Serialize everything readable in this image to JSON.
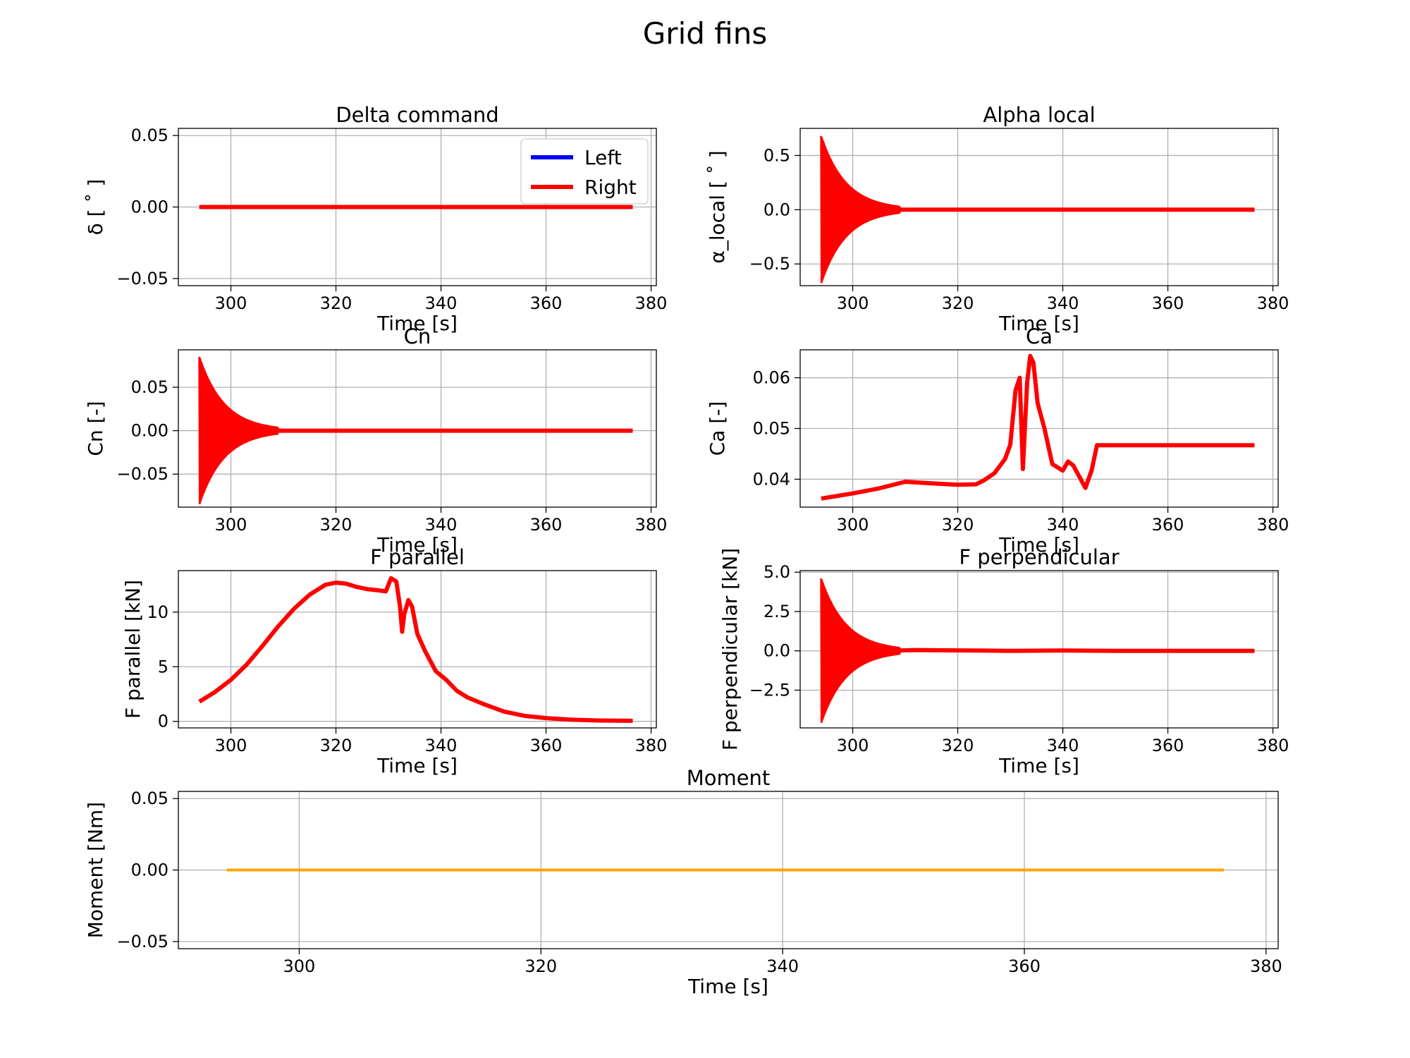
{
  "figure": {
    "title": "Grid fins"
  },
  "colors": {
    "left": "#0000ff",
    "right": "#ff0000",
    "moment": "#ffa500",
    "grid": "#b0b0b0"
  },
  "legend": {
    "entries": [
      "Left",
      "Right"
    ],
    "placement": "upper-right of first panel"
  },
  "chart_data": [
    {
      "type": "line",
      "title": "Delta command",
      "xlabel": "Time [s]",
      "ylabel": "δ [ ˚ ]",
      "xlim": [
        290,
        381
      ],
      "ylim": [
        -0.055,
        0.055
      ],
      "xticks": [
        300,
        320,
        340,
        360,
        380
      ],
      "yticks": [
        -0.05,
        0.0,
        0.05
      ],
      "ytick_labels": [
        "−0.05",
        "0.00",
        "0.05"
      ],
      "grid": true,
      "series": [
        {
          "name": "Left",
          "color": "#0000ff",
          "x": [
            294,
            376.5
          ],
          "y": [
            0,
            0
          ]
        },
        {
          "name": "Right",
          "color": "#ff0000",
          "x": [
            294,
            376.5
          ],
          "y": [
            0,
            0
          ]
        }
      ]
    },
    {
      "type": "line",
      "title": "Alpha local",
      "xlabel": "Time [s]",
      "ylabel": "α_local [ ˚ ]",
      "xlim": [
        290,
        381
      ],
      "ylim": [
        -0.7,
        0.75
      ],
      "xticks": [
        300,
        320,
        340,
        360,
        380
      ],
      "yticks": [
        -0.5,
        0.0,
        0.5
      ],
      "ytick_labels": [
        "−0.5",
        "0.0",
        "0.5"
      ],
      "grid": true,
      "series": [
        {
          "name": "Right",
          "color": "#ff0000",
          "oscillation": {
            "x_start": 294,
            "x_decay_end": 309,
            "x_end": 376.5,
            "amplitude_start": 0.68,
            "mean": 0.0
          },
          "x": [
            294,
            376.5
          ],
          "y": [
            0,
            0
          ]
        }
      ]
    },
    {
      "type": "line",
      "title": "Cn",
      "xlabel": "Time [s]",
      "ylabel": "Cn [-]",
      "xlim": [
        290,
        381
      ],
      "ylim": [
        -0.088,
        0.093
      ],
      "xticks": [
        300,
        320,
        340,
        360,
        380
      ],
      "yticks": [
        -0.05,
        0.0,
        0.05
      ],
      "ytick_labels": [
        "−0.05",
        "0.00",
        "0.05"
      ],
      "grid": true,
      "series": [
        {
          "name": "Right",
          "color": "#ff0000",
          "oscillation": {
            "x_start": 294,
            "x_decay_end": 309,
            "x_end": 376.5,
            "amplitude_start": 0.085,
            "mean": 0.0
          },
          "x": [
            294,
            376.5
          ],
          "y": [
            0,
            0
          ]
        }
      ]
    },
    {
      "type": "line",
      "title": "Ca",
      "xlabel": "Time [s]",
      "ylabel": "Ca [-]",
      "xlim": [
        290,
        381
      ],
      "ylim": [
        0.0345,
        0.0655
      ],
      "xticks": [
        300,
        320,
        340,
        360,
        380
      ],
      "yticks": [
        0.04,
        0.05,
        0.06
      ],
      "ytick_labels": [
        "0.04",
        "0.05",
        "0.06"
      ],
      "grid": true,
      "series": [
        {
          "name": "Right",
          "color": "#ff0000",
          "x": [
            294,
            300,
            305,
            310,
            315,
            320,
            323.5,
            325,
            327,
            329,
            330,
            331,
            331.8,
            332.4,
            333.2,
            333.8,
            334.4,
            335.2,
            336.5,
            338,
            340,
            341,
            342,
            344.3,
            345.5,
            346.5,
            350,
            376.5
          ],
          "y": [
            0.0362,
            0.0372,
            0.0382,
            0.0395,
            0.0392,
            0.0389,
            0.039,
            0.0398,
            0.0412,
            0.044,
            0.0468,
            0.0575,
            0.06,
            0.042,
            0.059,
            0.0643,
            0.063,
            0.055,
            0.05,
            0.043,
            0.0417,
            0.0435,
            0.0427,
            0.0383,
            0.0418,
            0.0467,
            0.0467,
            0.0467
          ]
        }
      ]
    },
    {
      "type": "line",
      "title": "F parallel",
      "xlabel": "Time [s]",
      "ylabel": "F parallel [kN]",
      "xlim": [
        290,
        381
      ],
      "ylim": [
        -0.6,
        13.8
      ],
      "xticks": [
        300,
        320,
        340,
        360,
        380
      ],
      "yticks": [
        0,
        5,
        10
      ],
      "ytick_labels": [
        "0",
        "5",
        "10"
      ],
      "grid": true,
      "series": [
        {
          "name": "Right",
          "color": "#ff0000",
          "x": [
            294,
            297,
            300,
            303,
            306,
            309,
            312,
            315,
            318,
            320,
            322,
            324,
            326,
            328,
            329.5,
            330.5,
            331.5,
            332.2,
            332.6,
            333,
            333.8,
            334.5,
            335.5,
            337,
            339,
            341,
            343,
            345,
            348,
            352,
            356,
            360,
            365,
            370,
            376.5
          ],
          "y": [
            1.8,
            2.7,
            3.8,
            5.2,
            6.9,
            8.7,
            10.3,
            11.6,
            12.5,
            12.7,
            12.6,
            12.3,
            12.1,
            12.0,
            11.9,
            13.1,
            12.8,
            10.5,
            8.2,
            9.8,
            11.1,
            10.5,
            8.0,
            6.4,
            4.6,
            3.8,
            2.8,
            2.2,
            1.6,
            0.9,
            0.5,
            0.3,
            0.15,
            0.08,
            0.05
          ]
        }
      ]
    },
    {
      "type": "line",
      "title": "F perpendicular",
      "xlabel": "Time [s]",
      "ylabel": "F perpendicular [kN]",
      "xlim": [
        290,
        381
      ],
      "ylim": [
        -4.9,
        5.1
      ],
      "xticks": [
        300,
        320,
        340,
        360,
        380
      ],
      "yticks": [
        -2.5,
        0.0,
        2.5,
        5.0
      ],
      "ytick_labels": [
        "−2.5",
        "0.0",
        "2.5",
        "5.0"
      ],
      "grid": true,
      "series": [
        {
          "name": "Right",
          "color": "#ff0000",
          "oscillation": {
            "x_start": 294,
            "x_decay_end": 309,
            "x_end": 376.5,
            "amplitude_start": 4.6,
            "mean": 0.0
          },
          "x": [
            294,
            309,
            312,
            320,
            330,
            340,
            350,
            376.5
          ],
          "y": [
            0,
            0.02,
            0.05,
            0.03,
            0.0,
            0.02,
            0.0,
            0.0
          ]
        }
      ]
    },
    {
      "type": "line",
      "title": "Moment",
      "xlabel": "Time [s]",
      "ylabel": "Moment [Nm]",
      "xlim": [
        290,
        381
      ],
      "ylim": [
        -0.055,
        0.055
      ],
      "xticks": [
        300,
        320,
        340,
        360,
        380
      ],
      "yticks": [
        -0.05,
        0.0,
        0.05
      ],
      "ytick_labels": [
        "−0.05",
        "0.00",
        "0.05"
      ],
      "grid": true,
      "series": [
        {
          "color": "#ffa500",
          "x": [
            294,
            376.5
          ],
          "y": [
            0,
            0
          ]
        }
      ]
    }
  ]
}
